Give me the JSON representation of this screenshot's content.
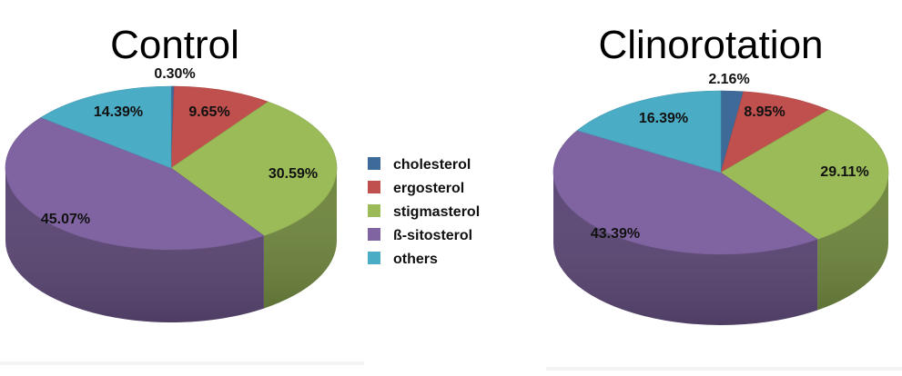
{
  "legend": {
    "items": [
      {
        "label": "cholesterol",
        "color": "#3d6a99"
      },
      {
        "label": "ergosterol",
        "color": "#c0504d"
      },
      {
        "label": "stigmasterol",
        "color": "#9bbb59"
      },
      {
        "label": "ß-sitosterol",
        "color": "#8064a2"
      },
      {
        "label": "others",
        "color": "#4bacc6"
      }
    ]
  },
  "chart_data": [
    {
      "type": "pie",
      "title": "Control",
      "categories": [
        "cholesterol",
        "ergosterol",
        "stigmasterol",
        "ß-sitosterol",
        "others"
      ],
      "values": [
        0.3,
        9.65,
        30.59,
        45.07,
        14.39
      ],
      "labels": [
        "0.30%",
        "9.65%",
        "30.59%",
        "45.07%",
        "14.39%"
      ]
    },
    {
      "type": "pie",
      "title": "Clinorotation",
      "categories": [
        "cholesterol",
        "ergosterol",
        "stigmasterol",
        "ß-sitosterol",
        "others"
      ],
      "values": [
        2.16,
        8.95,
        29.11,
        43.39,
        16.39
      ],
      "labels": [
        "2.16%",
        "8.95%",
        "29.11%",
        "43.39%",
        "16.39%"
      ]
    }
  ]
}
